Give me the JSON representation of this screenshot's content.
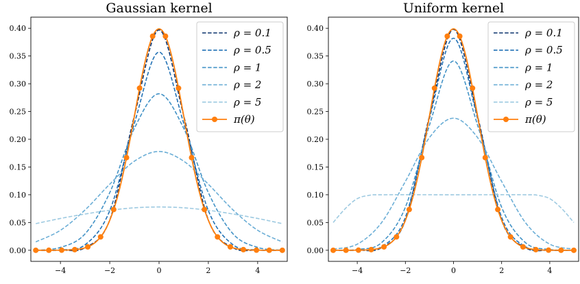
{
  "chart_data": [
    {
      "type": "line",
      "title": "Gaussian kernel",
      "xlabel": "",
      "ylabel": "",
      "xlim": [
        -5.2,
        5.2
      ],
      "ylim": [
        -0.02,
        0.42
      ],
      "xticks": [
        -4,
        -2,
        0,
        2,
        4
      ],
      "xtick_labels": [
        "−4",
        "−2",
        "0",
        "2",
        "4"
      ],
      "yticks": [
        0.0,
        0.05,
        0.1,
        0.15,
        0.2,
        0.25,
        0.3,
        0.35,
        0.4
      ],
      "ytick_labels": [
        "0.00",
        "0.05",
        "0.10",
        "0.15",
        "0.20",
        "0.25",
        "0.30",
        "0.35",
        "0.40"
      ],
      "legend_position": "top-right",
      "series": [
        {
          "name": "ρ = 0.1",
          "style": "dashed",
          "color": "#08306b",
          "peak": 0.397,
          "points": [
            [
              -5,
              0.0
            ],
            [
              -4,
              0.0002
            ],
            [
              -3,
              0.0046
            ],
            [
              -2,
              0.0545
            ],
            [
              -1,
              0.2425
            ],
            [
              0,
              0.397
            ],
            [
              1,
              0.2425
            ],
            [
              2,
              0.0545
            ],
            [
              3,
              0.0046
            ],
            [
              4,
              0.0002
            ],
            [
              5,
              0.0
            ]
          ]
        },
        {
          "name": "ρ = 0.5",
          "style": "dashed",
          "color": "#2171b5",
          "peak": 0.357,
          "points": [
            [
              -5,
              0.0
            ],
            [
              -4,
              0.0006
            ],
            [
              -3,
              0.0099
            ],
            [
              -2,
              0.0714
            ],
            [
              -1,
              0.2288
            ],
            [
              0,
              0.357
            ],
            [
              1,
              0.2288
            ],
            [
              2,
              0.0714
            ],
            [
              3,
              0.0099
            ],
            [
              4,
              0.0006
            ],
            [
              5,
              0.0
            ]
          ]
        },
        {
          "name": "ρ = 1",
          "style": "dashed",
          "color": "#4292c6",
          "peak": 0.282,
          "points": [
            [
              -5,
              0.0
            ],
            [
              -4,
              0.0051
            ],
            [
              -3,
              0.0296
            ],
            [
              -2,
              0.1038
            ],
            [
              -1,
              0.2197
            ],
            [
              0,
              0.282
            ],
            [
              1,
              0.2197
            ],
            [
              2,
              0.1038
            ],
            [
              3,
              0.0296
            ],
            [
              4,
              0.0051
            ],
            [
              5,
              0.0
            ]
          ]
        },
        {
          "name": "ρ = 2",
          "style": "dashed",
          "color": "#6baed6",
          "peak": 0.178,
          "points": [
            [
              -5,
              0.015
            ],
            [
              -4,
              0.036
            ],
            [
              -3,
              0.0727
            ],
            [
              -2,
              0.119
            ],
            [
              -1,
              0.1605
            ],
            [
              0,
              0.178
            ],
            [
              1,
              0.1605
            ],
            [
              2,
              0.119
            ],
            [
              3,
              0.0727
            ],
            [
              4,
              0.036
            ],
            [
              5,
              0.015
            ]
          ]
        },
        {
          "name": "ρ = 5",
          "style": "dashed",
          "color": "#9ecae1",
          "peak": 0.078,
          "points": [
            [
              -5,
              0.048
            ],
            [
              -4,
              0.0573
            ],
            [
              -3,
              0.0653
            ],
            [
              -2,
              0.072
            ],
            [
              -1,
              0.0765
            ],
            [
              0,
              0.078
            ],
            [
              1,
              0.0765
            ],
            [
              2,
              0.072
            ],
            [
              3,
              0.0653
            ],
            [
              4,
              0.0573
            ],
            [
              5,
              0.048
            ]
          ]
        }
      ],
      "target": {
        "name": "π(θ)",
        "color": "#ff7f0e",
        "marker_x": [
          -5.0,
          -4.47,
          -3.95,
          -3.42,
          -2.89,
          -2.37,
          -1.84,
          -1.32,
          -0.79,
          -0.26,
          0.26,
          0.79,
          1.32,
          1.84,
          2.37,
          2.89,
          3.42,
          3.95,
          4.47,
          5.0
        ]
      }
    },
    {
      "type": "line",
      "title": "Uniform kernel",
      "xlabel": "",
      "ylabel": "",
      "xlim": [
        -5.2,
        5.2
      ],
      "ylim": [
        -0.02,
        0.42
      ],
      "xticks": [
        -4,
        -2,
        0,
        2,
        4
      ],
      "xtick_labels": [
        "−4",
        "−2",
        "0",
        "2",
        "4"
      ],
      "yticks": [
        0.0,
        0.05,
        0.1,
        0.15,
        0.2,
        0.25,
        0.3,
        0.35,
        0.4
      ],
      "ytick_labels": [
        "0.00",
        "0.05",
        "0.10",
        "0.15",
        "0.20",
        "0.25",
        "0.30",
        "0.35",
        "0.40"
      ],
      "legend_position": "top-right",
      "series": [
        {
          "name": "ρ = 0.1",
          "style": "dashed",
          "color": "#08306b",
          "peak": 0.398,
          "points": [
            [
              -5,
              0.0
            ],
            [
              -4,
              0.0001
            ],
            [
              -3,
              0.0044
            ],
            [
              -2,
              0.054
            ],
            [
              -1,
              0.2418
            ],
            [
              0,
              0.398
            ],
            [
              1,
              0.2418
            ],
            [
              2,
              0.054
            ],
            [
              3,
              0.0044
            ],
            [
              4,
              0.0001
            ],
            [
              5,
              0.0
            ]
          ]
        },
        {
          "name": "ρ = 0.5",
          "style": "dashed",
          "color": "#2171b5",
          "peak": 0.382,
          "points": [
            [
              -5,
              0.0
            ],
            [
              -4,
              0.0003
            ],
            [
              -3,
              0.0062
            ],
            [
              -2,
              0.0595
            ],
            [
              -1,
              0.2372
            ],
            [
              0,
              0.382
            ],
            [
              1,
              0.2372
            ],
            [
              2,
              0.0595
            ],
            [
              3,
              0.0062
            ],
            [
              4,
              0.0003
            ],
            [
              5,
              0.0
            ]
          ]
        },
        {
          "name": "ρ = 1",
          "style": "dashed",
          "color": "#4292c6",
          "peak": 0.341,
          "points": [
            [
              -5,
              0.0
            ],
            [
              -4,
              0.0014
            ],
            [
              -3,
              0.0134
            ],
            [
              -2,
              0.0776
            ],
            [
              -1,
              0.2254
            ],
            [
              0,
              0.341
            ],
            [
              1,
              0.2254
            ],
            [
              2,
              0.0776
            ],
            [
              3,
              0.0134
            ],
            [
              4,
              0.0014
            ],
            [
              5,
              0.0
            ]
          ]
        },
        {
          "name": "ρ = 2",
          "style": "dashed",
          "color": "#6baed6",
          "peak": 0.238,
          "points": [
            [
              -5,
              0.002
            ],
            [
              -4,
              0.011
            ],
            [
              -3,
              0.0492
            ],
            [
              -2,
              0.124
            ],
            [
              -1,
              0.203
            ],
            [
              0,
              0.238
            ],
            [
              1,
              0.203
            ],
            [
              2,
              0.124
            ],
            [
              3,
              0.0492
            ],
            [
              4,
              0.011
            ],
            [
              5,
              0.002
            ]
          ]
        },
        {
          "name": "ρ = 5",
          "style": "dashed",
          "color": "#9ecae1",
          "peak": 0.1,
          "points": [
            [
              -5,
              0.05
            ],
            [
              -4.5,
              0.075
            ],
            [
              -4,
              0.093
            ],
            [
              -3.5,
              0.099
            ],
            [
              -3,
              0.1
            ],
            [
              0,
              0.1
            ],
            [
              3,
              0.1
            ],
            [
              3.5,
              0.099
            ],
            [
              4,
              0.093
            ],
            [
              4.5,
              0.075
            ],
            [
              5,
              0.05
            ]
          ]
        }
      ],
      "target": {
        "name": "π(θ)",
        "color": "#ff7f0e",
        "marker_x": [
          -5.0,
          -4.47,
          -3.95,
          -3.42,
          -2.89,
          -2.37,
          -1.84,
          -1.32,
          -0.79,
          -0.26,
          0.26,
          0.79,
          1.32,
          1.84,
          2.37,
          2.89,
          3.42,
          3.95,
          4.47,
          5.0
        ]
      }
    }
  ]
}
